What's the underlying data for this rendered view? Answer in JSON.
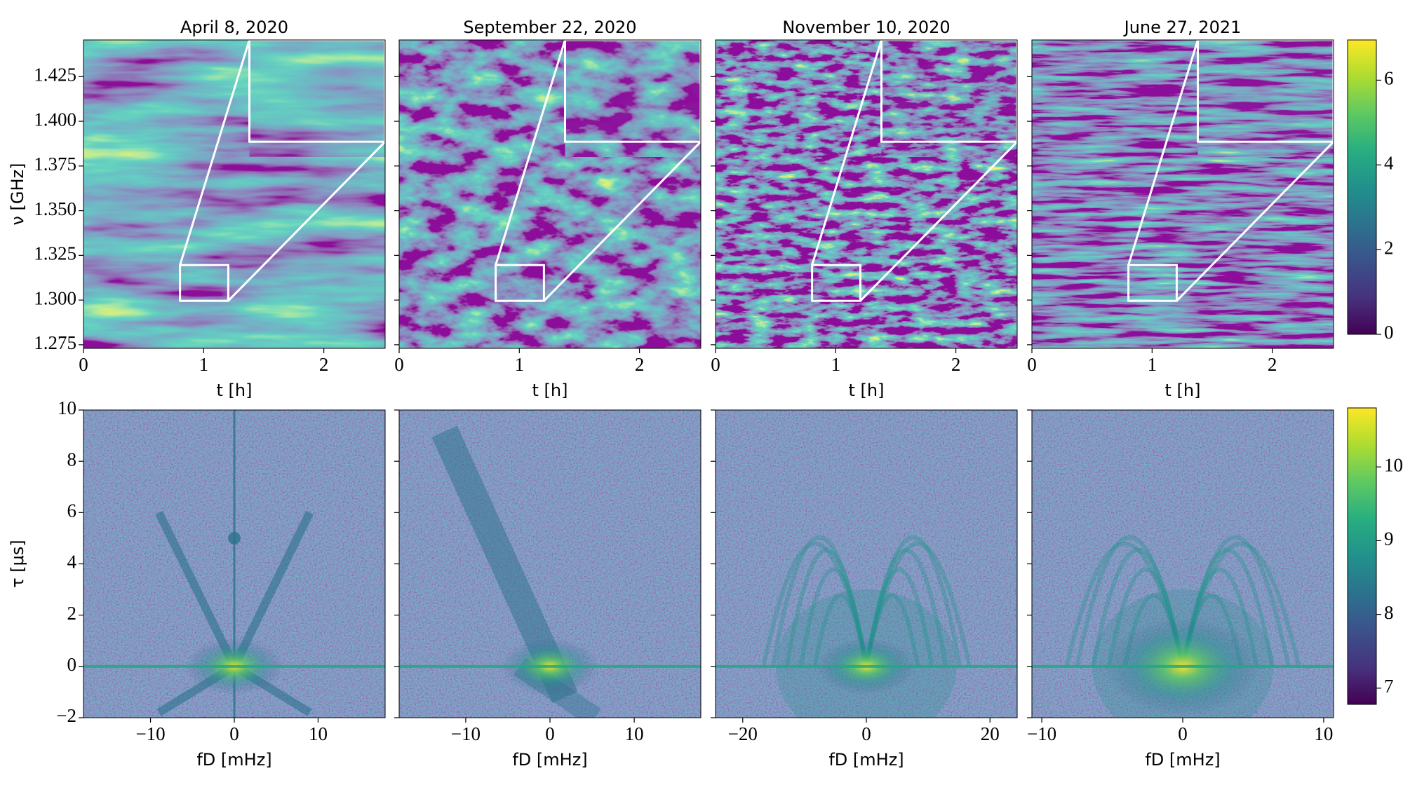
{
  "chart_data": [
    {
      "type": "heatmap",
      "title": "April 8, 2020",
      "xlabel": "t [h]",
      "ylabel": "ν [GHz]",
      "xlim": [
        0,
        2.51
      ],
      "xticks": [
        0,
        1,
        2
      ],
      "ylim": [
        1.273,
        1.4455
      ],
      "yticks": [
        1.275,
        {
          "value": 1.3,
          "label": "1.300"
        },
        1.325,
        {
          "value": 1.35,
          "label": "1.350"
        },
        1.375,
        {
          "value": 1.4,
          "label": "1.400"
        },
        1.425
      ]
    },
    {
      "type": "heatmap",
      "title": "September 22, 2020",
      "xlabel": "t [h]",
      "xlim": [
        0,
        2.51
      ],
      "xticks": [
        0,
        1,
        2
      ]
    },
    {
      "type": "heatmap",
      "title": "November 10, 2020",
      "xlabel": "t [h]",
      "xlim": [
        0,
        2.51
      ],
      "xticks": [
        0,
        1,
        2
      ]
    },
    {
      "type": "heatmap",
      "title": "June 27, 2021",
      "xlabel": "t [h]",
      "xlim": [
        0,
        2.51
      ],
      "xticks": [
        0,
        1,
        2
      ],
      "colorbar": {
        "lim": [
          0,
          6.95
        ],
        "ticks": [
          0,
          2,
          4,
          6
        ]
      }
    },
    {
      "type": "heatmap",
      "xlabel": "fD [mHz]",
      "ylabel": "τ [μs]",
      "xlim": [
        -18,
        18
      ],
      "xticks": [
        {
          "value": -10,
          "label": "−10"
        },
        0,
        10
      ],
      "ylim": [
        -2,
        10
      ],
      "yticks": [
        {
          "value": -2,
          "label": "−2"
        },
        0,
        2,
        4,
        6,
        8,
        10
      ]
    },
    {
      "type": "heatmap",
      "xlabel": "fD [mHz]",
      "xlim": [
        -17.9,
        17.9
      ],
      "xticks": [
        {
          "value": -10,
          "label": "−10"
        },
        0,
        10
      ]
    },
    {
      "type": "heatmap",
      "xlabel": "fD [mHz]",
      "xlim": [
        -24.4,
        24.4
      ],
      "xticks": [
        {
          "value": -20,
          "label": "−20"
        },
        0,
        20
      ]
    },
    {
      "type": "heatmap",
      "xlabel": "fD [mHz]",
      "xlim": [
        -10.7,
        10.7
      ],
      "xticks": [
        {
          "value": -10,
          "label": "−10"
        },
        0,
        10
      ],
      "colorbar": {
        "lim": [
          6.78,
          10.8
        ],
        "ticks": [
          7,
          8,
          9,
          10
        ]
      }
    }
  ]
}
